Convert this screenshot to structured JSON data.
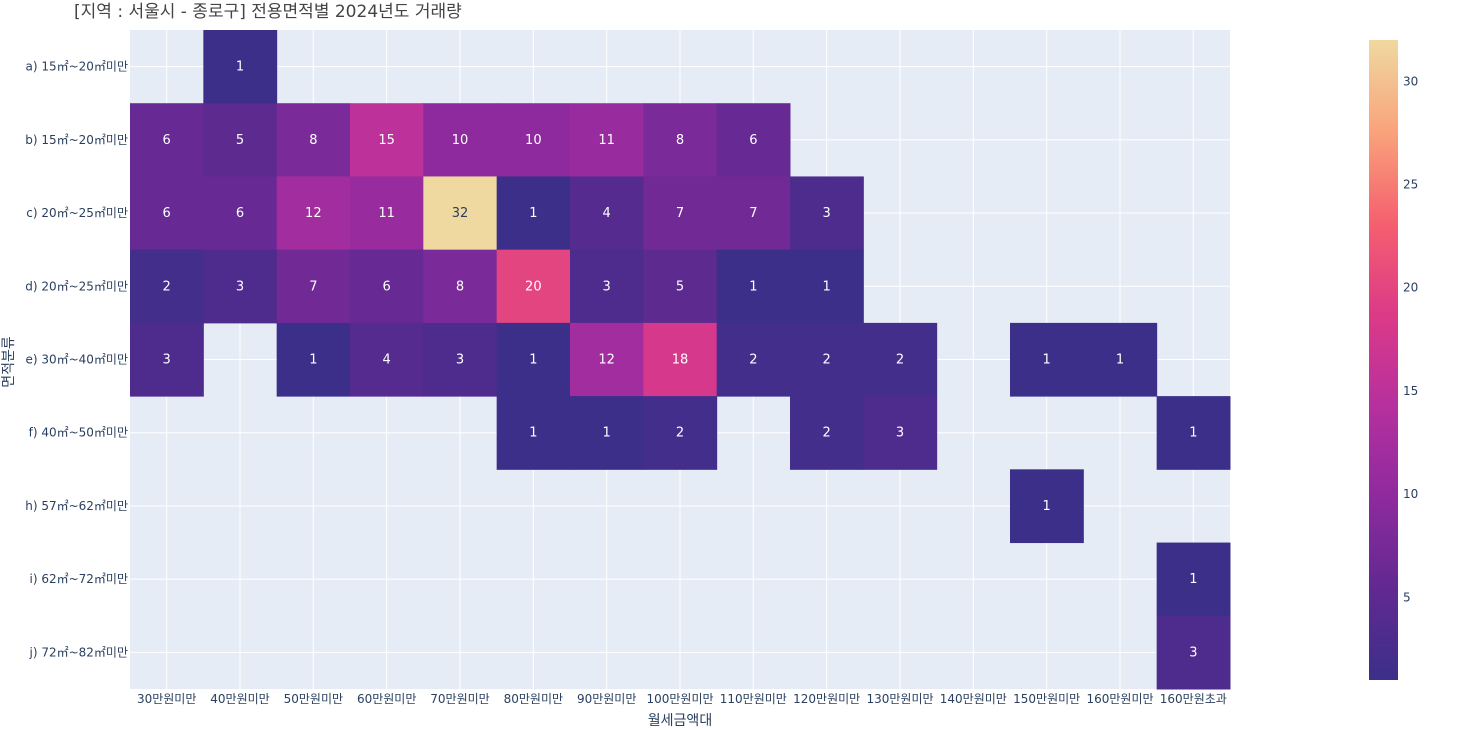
{
  "chart_data": {
    "type": "heatmap",
    "title": "[지역 : 서울시 - 종로구] 전용면적별 2024년도 거래량",
    "xlabel": "월세금액대",
    "ylabel": "면적분류",
    "x": [
      "30만원미만",
      "40만원미만",
      "50만원미만",
      "60만원미만",
      "70만원미만",
      "80만원미만",
      "90만원미만",
      "100만원미만",
      "110만원미만",
      "120만원미만",
      "130만원미만",
      "140만원미만",
      "150만원미만",
      "160만원미만",
      "160만원초과"
    ],
    "y": [
      "a) 15㎡~20㎡미만",
      "b) 15㎡~20㎡미만",
      "c) 20㎡~25㎡미만",
      "d) 20㎡~25㎡미만",
      "e) 30㎡~40㎡미만",
      "f) 40㎡~50㎡미만",
      "h) 57㎡~62㎡미만",
      "i) 62㎡~72㎡미만",
      "j) 72㎡~82㎡미만"
    ],
    "z": [
      [
        null,
        1,
        null,
        null,
        null,
        null,
        null,
        null,
        null,
        null,
        null,
        null,
        null,
        null,
        null
      ],
      [
        6,
        5,
        8,
        15,
        10,
        10,
        11,
        8,
        6,
        null,
        null,
        null,
        null,
        null,
        null
      ],
      [
        6,
        6,
        12,
        11,
        32,
        1,
        4,
        7,
        7,
        3,
        null,
        null,
        null,
        null,
        null
      ],
      [
        2,
        3,
        7,
        6,
        8,
        20,
        3,
        5,
        1,
        1,
        null,
        null,
        null,
        null,
        null
      ],
      [
        3,
        null,
        1,
        4,
        3,
        1,
        12,
        18,
        2,
        2,
        2,
        null,
        1,
        1,
        null
      ],
      [
        null,
        null,
        null,
        null,
        null,
        1,
        1,
        2,
        null,
        2,
        3,
        null,
        null,
        null,
        1
      ],
      [
        null,
        null,
        null,
        null,
        null,
        null,
        null,
        null,
        null,
        null,
        null,
        null,
        1,
        null,
        null
      ],
      [
        null,
        null,
        null,
        null,
        null,
        null,
        null,
        null,
        null,
        null,
        null,
        null,
        null,
        null,
        1
      ],
      [
        null,
        null,
        null,
        null,
        null,
        null,
        null,
        null,
        null,
        null,
        null,
        null,
        null,
        null,
        3
      ]
    ],
    "zmin": 1,
    "zmax": 32,
    "colorscale": [
      "#3c2f8a",
      "#612991",
      "#8e2a9e",
      "#b6309e",
      "#dc3a87",
      "#f5606f",
      "#f9a37b",
      "#efd9a0"
    ],
    "colorbar_ticks": [
      5,
      10,
      15,
      20,
      25,
      30
    ],
    "grid": true,
    "plot_bg": "#e5ecf6"
  }
}
